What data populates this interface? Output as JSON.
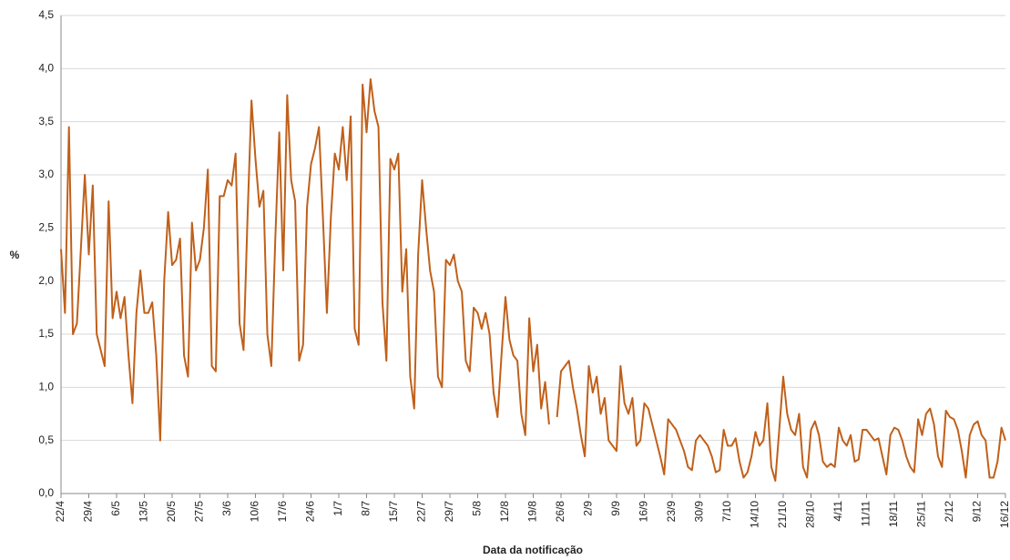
{
  "chart_data": {
    "type": "line",
    "y_label": "%",
    "x_label": "Data da notificação",
    "categories": [
      "22/4",
      null,
      null,
      null,
      null,
      null,
      null,
      "29/4",
      null,
      null,
      null,
      null,
      null,
      null,
      "6/5",
      null,
      null,
      null,
      null,
      null,
      null,
      "13/5",
      null,
      null,
      null,
      null,
      null,
      null,
      "20/5",
      null,
      null,
      null,
      null,
      null,
      null,
      "27/5",
      null,
      null,
      null,
      null,
      null,
      null,
      "3/6",
      null,
      null,
      null,
      null,
      null,
      null,
      "10/6",
      null,
      null,
      null,
      null,
      null,
      null,
      "17/6",
      null,
      null,
      null,
      null,
      null,
      null,
      "24/6",
      null,
      null,
      null,
      null,
      null,
      null,
      "1/7",
      null,
      null,
      null,
      null,
      null,
      null,
      "8/7",
      null,
      null,
      null,
      null,
      null,
      null,
      "15/7",
      null,
      null,
      null,
      null,
      null,
      null,
      "22/7",
      null,
      null,
      null,
      null,
      null,
      null,
      "29/7",
      null,
      null,
      null,
      null,
      null,
      null,
      "5/8",
      null,
      null,
      null,
      null,
      null,
      null,
      "12/8",
      null,
      null,
      null,
      null,
      null,
      null,
      "19/8",
      null,
      null,
      null,
      null,
      null,
      null,
      "26/8",
      null,
      null,
      null,
      null,
      null,
      null,
      "2/9",
      null,
      null,
      null,
      null,
      null,
      null,
      "9/9",
      null,
      null,
      null,
      null,
      null,
      null,
      "16/9",
      null,
      null,
      null,
      null,
      null,
      null,
      "23/9",
      null,
      null,
      null,
      null,
      null,
      null,
      "30/9",
      null,
      null,
      null,
      null,
      null,
      null,
      "7/10",
      null,
      null,
      null,
      null,
      null,
      null,
      "14/10",
      null,
      null,
      null,
      null,
      null,
      null,
      "21/10",
      null,
      null,
      null,
      null,
      null,
      null,
      "28/10",
      null,
      null,
      null,
      null,
      null,
      null,
      "4/11",
      null,
      null,
      null,
      null,
      null,
      null,
      "11/11",
      null,
      null,
      null,
      null,
      null,
      null,
      "18/11",
      null,
      null,
      null,
      null,
      null,
      null,
      "25/11",
      null,
      null,
      null,
      null,
      null,
      null,
      "2/12",
      null,
      null,
      null,
      null,
      null,
      null,
      "9/12",
      null,
      null,
      null,
      null,
      null,
      null,
      "16/12"
    ],
    "color": "#c0601a",
    "values": [
      2.3,
      1.7,
      3.45,
      1.5,
      1.6,
      2.3,
      3.0,
      2.25,
      2.9,
      1.5,
      1.35,
      1.2,
      2.75,
      1.65,
      1.9,
      1.65,
      1.85,
      1.3,
      0.85,
      1.7,
      2.1,
      1.7,
      1.7,
      1.8,
      1.3,
      0.5,
      2.0,
      2.65,
      2.15,
      2.2,
      2.4,
      1.3,
      1.1,
      2.55,
      2.1,
      2.2,
      2.5,
      3.05,
      1.2,
      1.15,
      2.8,
      2.8,
      2.95,
      2.9,
      3.2,
      1.6,
      1.35,
      2.6,
      3.7,
      3.15,
      2.7,
      2.85,
      1.5,
      1.2,
      2.4,
      3.4,
      2.1,
      3.75,
      2.95,
      2.75,
      1.25,
      1.4,
      2.7,
      3.1,
      3.25,
      3.45,
      2.6,
      1.7,
      2.6,
      3.2,
      3.05,
      3.45,
      2.95,
      3.55,
      1.55,
      1.4,
      3.85,
      3.4,
      3.9,
      3.6,
      3.45,
      1.8,
      1.25,
      3.15,
      3.05,
      3.2,
      1.9,
      2.3,
      1.1,
      0.8,
      2.25,
      2.95,
      2.5,
      2.1,
      1.9,
      1.1,
      1.0,
      2.2,
      2.15,
      2.25,
      2.0,
      1.9,
      1.25,
      1.15,
      1.75,
      1.7,
      1.55,
      1.7,
      1.5,
      0.95,
      0.72,
      1.3,
      1.85,
      1.45,
      1.3,
      1.25,
      0.75,
      0.55,
      1.65,
      1.15,
      1.4,
      0.8,
      1.05,
      0.65,
      null,
      0.72,
      1.15,
      1.2,
      1.25,
      1.0,
      0.8,
      0.55,
      0.35,
      1.2,
      0.95,
      1.1,
      0.75,
      0.9,
      0.5,
      0.45,
      0.4,
      1.2,
      0.85,
      0.75,
      0.9,
      0.45,
      0.5,
      0.85,
      0.8,
      0.65,
      0.5,
      0.35,
      0.18,
      0.7,
      0.65,
      0.6,
      0.5,
      0.4,
      0.25,
      0.22,
      0.5,
      0.55,
      0.5,
      0.45,
      0.35,
      0.2,
      0.22,
      0.6,
      0.45,
      0.45,
      0.52,
      0.3,
      0.15,
      0.2,
      0.35,
      0.58,
      0.45,
      0.5,
      0.85,
      0.25,
      0.12,
      0.6,
      1.1,
      0.75,
      0.6,
      0.55,
      0.75,
      0.25,
      0.15,
      0.6,
      0.68,
      0.55,
      0.3,
      0.25,
      0.28,
      0.25,
      0.62,
      0.5,
      0.45,
      0.55,
      0.3,
      0.32,
      0.6,
      0.6,
      0.55,
      0.5,
      0.52,
      0.35,
      0.18,
      0.55,
      0.62,
      0.6,
      0.5,
      0.35,
      0.25,
      0.2,
      0.7,
      0.55,
      0.75,
      0.8,
      0.65,
      0.35,
      0.25,
      0.78,
      0.72,
      0.7,
      0.6,
      0.4,
      0.15,
      0.55,
      0.65,
      0.68,
      0.55,
      0.5,
      0.15,
      0.15,
      0.3,
      0.62,
      0.5
    ],
    "ylim": [
      0,
      4.5
    ],
    "yticks": [
      {
        "value": 0,
        "label": "0,0"
      },
      {
        "value": 0.5,
        "label": "0,5"
      },
      {
        "value": 1,
        "label": "1,0"
      },
      {
        "value": 1.5,
        "label": "1,5"
      },
      {
        "value": 2,
        "label": "2,0"
      },
      {
        "value": 2.5,
        "label": "2,5"
      },
      {
        "value": 3,
        "label": "3,0"
      },
      {
        "value": 3.5,
        "label": "3,5"
      },
      {
        "value": 4,
        "label": "4,0"
      },
      {
        "value": 4.5,
        "label": "4,5"
      }
    ],
    "grid": true
  }
}
